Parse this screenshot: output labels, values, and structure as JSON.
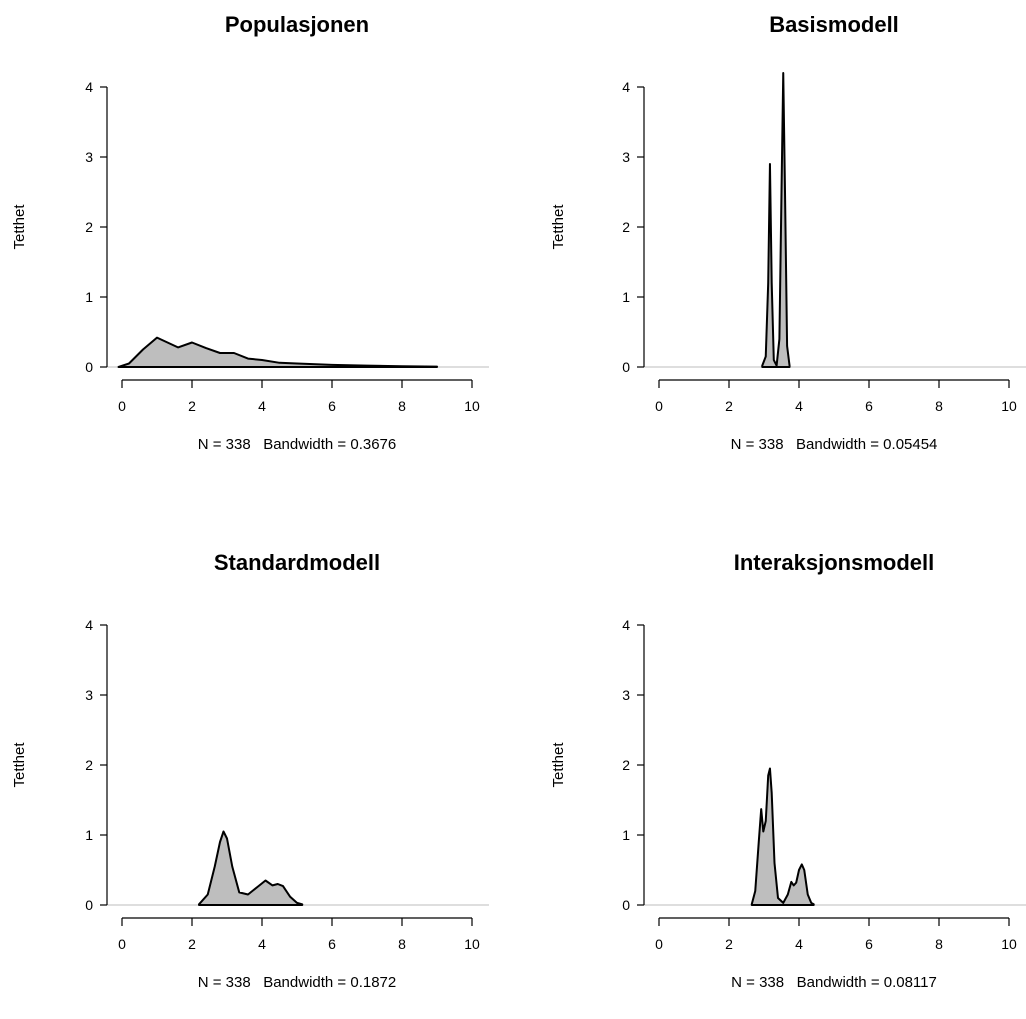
{
  "chart_data": [
    {
      "type": "area",
      "title": "Populasjonen",
      "ylabel": "Tetthet",
      "xlabel": "N = 338   Bandwidth = 0.3676",
      "xlim": [
        0,
        10
      ],
      "ylim": [
        0,
        4
      ],
      "xticks": [
        "0",
        "2",
        "4",
        "6",
        "8",
        "10"
      ],
      "yticks": [
        "0",
        "1",
        "2",
        "3",
        "4"
      ],
      "x": [
        -0.1,
        0.2,
        0.6,
        1.0,
        1.3,
        1.6,
        2.0,
        2.4,
        2.8,
        3.2,
        3.6,
        4.0,
        4.5,
        5.0,
        6.0,
        7.0,
        8.0,
        9.0
      ],
      "y": [
        0.0,
        0.05,
        0.25,
        0.42,
        0.35,
        0.28,
        0.35,
        0.27,
        0.2,
        0.2,
        0.12,
        0.1,
        0.06,
        0.05,
        0.03,
        0.02,
        0.01,
        0.005
      ]
    },
    {
      "type": "area",
      "title": "Basismodell",
      "ylabel": "Tetthet",
      "xlabel": "N = 338   Bandwidth = 0.05454",
      "xlim": [
        0,
        10
      ],
      "ylim": [
        0,
        4
      ],
      "xticks": [
        "0",
        "2",
        "4",
        "6",
        "8",
        "10"
      ],
      "yticks": [
        "0",
        "1",
        "2",
        "3",
        "4"
      ],
      "x": [
        2.95,
        3.05,
        3.12,
        3.17,
        3.22,
        3.28,
        3.36,
        3.44,
        3.5,
        3.55,
        3.6,
        3.66,
        3.73
      ],
      "y": [
        0.02,
        0.15,
        1.2,
        2.9,
        1.2,
        0.1,
        0.02,
        0.4,
        2.5,
        4.2,
        2.5,
        0.3,
        0.02
      ]
    },
    {
      "type": "area",
      "title": "Standardmodell",
      "ylabel": "Tetthet",
      "xlabel": "N = 338   Bandwidth = 0.1872",
      "xlim": [
        0,
        10
      ],
      "ylim": [
        0,
        4
      ],
      "xticks": [
        "0",
        "2",
        "4",
        "6",
        "8",
        "10"
      ],
      "yticks": [
        "0",
        "1",
        "2",
        "3",
        "4"
      ],
      "x": [
        2.2,
        2.45,
        2.65,
        2.8,
        2.9,
        3.0,
        3.15,
        3.35,
        3.6,
        3.9,
        4.1,
        4.3,
        4.45,
        4.6,
        4.8,
        5.0,
        5.15
      ],
      "y": [
        0.01,
        0.15,
        0.55,
        0.9,
        1.05,
        0.95,
        0.55,
        0.18,
        0.15,
        0.27,
        0.35,
        0.28,
        0.3,
        0.27,
        0.12,
        0.03,
        0.01
      ]
    },
    {
      "type": "area",
      "title": "Interaksjonsmodell",
      "ylabel": "Tetthet",
      "xlabel": "N = 338   Bandwidth = 0.08117",
      "xlim": [
        0,
        10
      ],
      "ylim": [
        0,
        4
      ],
      "xticks": [
        "0",
        "2",
        "4",
        "6",
        "8",
        "10"
      ],
      "yticks": [
        "0",
        "1",
        "2",
        "3",
        "4"
      ],
      "x": [
        2.65,
        2.75,
        2.85,
        2.92,
        2.98,
        3.05,
        3.12,
        3.17,
        3.22,
        3.3,
        3.4,
        3.55,
        3.68,
        3.78,
        3.85,
        3.92,
        4.0,
        4.08,
        4.15,
        4.25,
        4.35,
        4.42
      ],
      "y": [
        0.01,
        0.2,
        0.9,
        1.37,
        1.05,
        1.2,
        1.85,
        1.95,
        1.6,
        0.6,
        0.1,
        0.03,
        0.15,
        0.33,
        0.28,
        0.32,
        0.5,
        0.58,
        0.5,
        0.15,
        0.03,
        0.01
      ]
    }
  ]
}
